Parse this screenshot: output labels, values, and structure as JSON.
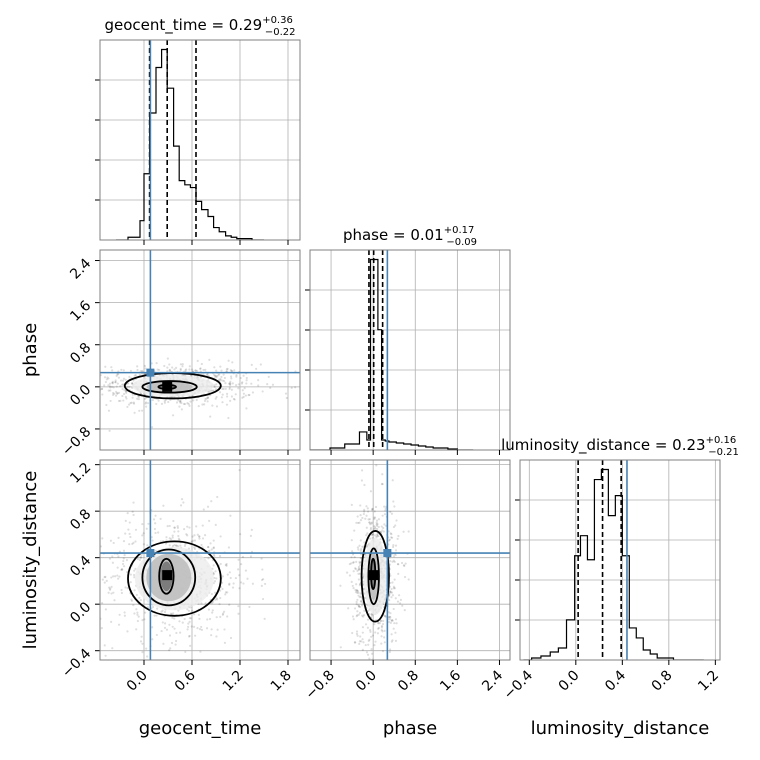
{
  "chart_data": {
    "type": "corner",
    "parameters": [
      "geocent_time",
      "phase",
      "luminosity_distance"
    ],
    "injection": {
      "geocent_time": 0.08,
      "phase": 0.27,
      "luminosity_distance": 0.44
    },
    "injection_color": "#4682b4",
    "histograms": [
      {
        "parameter": "geocent_time",
        "title_main": "geocent_time = 0.29",
        "title_sup": "+0.36",
        "title_sub": "−0.22",
        "quantiles": [
          0.07,
          0.29,
          0.65
        ],
        "edges": [
          -0.35,
          -0.2,
          -0.05,
          0.0,
          0.07,
          0.15,
          0.22,
          0.29,
          0.37,
          0.44,
          0.51,
          0.58,
          0.65,
          0.72,
          0.8,
          0.87,
          0.94,
          1.02,
          1.09,
          1.16,
          1.23,
          1.35,
          1.5
        ],
        "counts": [
          0,
          2,
          14,
          48,
          92,
          125,
          138,
          110,
          68,
          43,
          40,
          38,
          28,
          22,
          17,
          9,
          6,
          3,
          2,
          1,
          1,
          0
        ]
      },
      {
        "parameter": "phase",
        "title_main": "phase = 0.01",
        "title_sup": "+0.17",
        "title_sub": "−0.09",
        "quantiles": [
          -0.08,
          0.01,
          0.18
        ],
        "edges": [
          -1.2,
          -0.82,
          -0.54,
          -0.26,
          -0.12,
          -0.05,
          0.02,
          0.09,
          0.16,
          0.23,
          0.3,
          0.44,
          0.58,
          0.72,
          0.86,
          1.0,
          1.14,
          1.28,
          1.42,
          1.6,
          1.9
        ],
        "counts": [
          0,
          2,
          6,
          18,
          10,
          190,
          190,
          120,
          10,
          9,
          8,
          7,
          6,
          5,
          4,
          3,
          2,
          2,
          1,
          0
        ]
      },
      {
        "parameter": "luminosity_distance",
        "title_main": "luminosity_distance = 0.23",
        "title_sup": "+0.16",
        "title_sub": "−0.21",
        "quantiles": [
          0.02,
          0.23,
          0.39
        ],
        "edges": [
          -0.45,
          -0.38,
          -0.3,
          -0.22,
          -0.15,
          -0.08,
          -0.01,
          0.04,
          0.1,
          0.16,
          0.22,
          0.28,
          0.34,
          0.4,
          0.46,
          0.52,
          0.58,
          0.64,
          0.7,
          0.76,
          0.84,
          0.92,
          1.0,
          1.1
        ],
        "counts": [
          0,
          1,
          2,
          4,
          6,
          20,
          52,
          62,
          50,
          90,
          95,
          72,
          82,
          52,
          16,
          11,
          5,
          3,
          1,
          1,
          0,
          0,
          0
        ]
      }
    ],
    "pairs": [
      {
        "x": "geocent_time",
        "y": "phase",
        "peak": [
          0.29,
          0.0
        ],
        "contours": [
          {
            "center": [
              0.29,
              0.0
            ],
            "sx": 0.11,
            "sy": 0.04
          },
          {
            "center": [
              0.32,
              0.0
            ],
            "sx": 0.34,
            "sy": 0.11
          },
          {
            "center": [
              0.36,
              0.02
            ],
            "sx": 0.6,
            "sy": 0.24
          }
        ]
      },
      {
        "x": "geocent_time",
        "y": "luminosity_distance",
        "peak": [
          0.29,
          0.25
        ],
        "contours": [
          {
            "center": [
              0.28,
              0.24
            ],
            "sx": 0.09,
            "sy": 0.15
          },
          {
            "center": [
              0.31,
              0.23
            ],
            "sx": 0.33,
            "sy": 0.24
          },
          {
            "center": [
              0.38,
              0.22
            ],
            "sx": 0.58,
            "sy": 0.32
          }
        ]
      },
      {
        "x": "phase",
        "y": "luminosity_distance",
        "peak": [
          0.0,
          0.25
        ],
        "contours": [
          {
            "center": [
              0.0,
              0.26
            ],
            "sx": 0.04,
            "sy": 0.13
          },
          {
            "center": [
              0.01,
              0.24
            ],
            "sx": 0.1,
            "sy": 0.24
          },
          {
            "center": [
              0.04,
              0.24
            ],
            "sx": 0.26,
            "sy": 0.39
          }
        ]
      }
    ],
    "axes": {
      "geocent_time": {
        "lim": [
          -0.55,
          1.95
        ],
        "ticks": [
          0.0,
          0.6,
          1.2,
          1.8
        ],
        "tick_labels": [
          "0.0",
          "0.6",
          "1.2",
          "1.8"
        ]
      },
      "phase": {
        "lim": [
          -1.2,
          2.6
        ],
        "ticks": [
          -0.8,
          0.0,
          0.8,
          1.6,
          2.4
        ],
        "tick_labels": [
          "−0.8",
          "0.0",
          "0.8",
          "1.6",
          "2.4"
        ]
      },
      "luminosity_distance": {
        "lim": [
          -0.48,
          1.24
        ],
        "ticks": [
          -0.4,
          0.0,
          0.4,
          0.8,
          1.2
        ],
        "tick_labels": [
          "−0.4",
          "0.0",
          "0.4",
          "0.8",
          "1.2"
        ]
      }
    },
    "grid": true
  }
}
